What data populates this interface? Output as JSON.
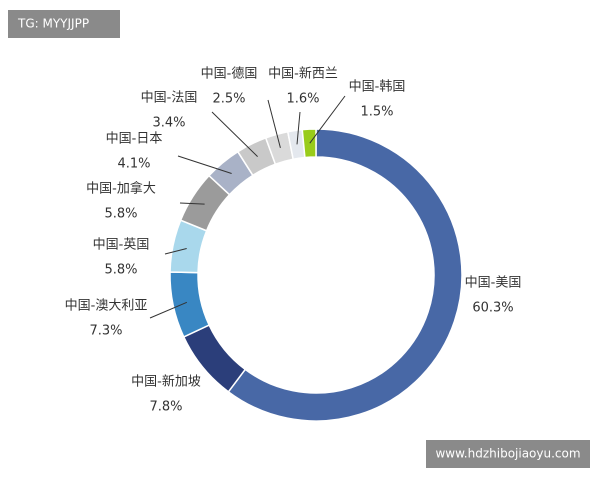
{
  "chart_data": {
    "type": "donut",
    "categories": [
      "中国-美国",
      "中国-新加坡",
      "中国-澳大利亚",
      "中国-英国",
      "中国-加拿大",
      "中国-日本",
      "中国-法国",
      "中国-德国",
      "中国-新西兰",
      "中国-韩国"
    ],
    "values": [
      60.3,
      7.8,
      7.3,
      5.8,
      5.8,
      4.1,
      3.4,
      2.5,
      1.6,
      1.5
    ],
    "value_labels": [
      "60.3%",
      "7.8%",
      "7.3%",
      "5.8%",
      "5.8%",
      "4.1%",
      "3.4%",
      "2.5%",
      "1.6%",
      "1.5%"
    ],
    "colors": [
      "#4868a6",
      "#2b3e7a",
      "#3987c3",
      "#a9d8ec",
      "#9b9b9b",
      "#a9b2c7",
      "#c9c9c9",
      "#dadada",
      "#e4e8ee",
      "#99cc1a"
    ],
    "annotations": [
      "TG: MYYJJPP",
      "www.hdzhibojiaoyu.com"
    ]
  }
}
